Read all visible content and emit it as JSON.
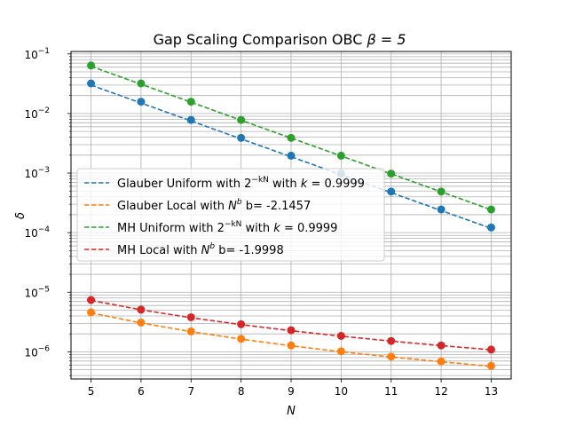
{
  "chart_data": {
    "type": "scatter",
    "title_main": "Gap Scaling Comparison OBC ",
    "title_math": "β = 5",
    "xlabel": "N",
    "ylabel": "δ",
    "x": [
      5,
      6,
      7,
      8,
      9,
      10,
      11,
      12,
      13
    ],
    "xlim": [
      4.6,
      13.4
    ],
    "ylim": [
      3.5e-07,
      0.11
    ],
    "yscale": "log",
    "grid": true,
    "legend_position": "center-left",
    "x_ticks": [
      5,
      6,
      7,
      8,
      9,
      10,
      11,
      12,
      13
    ],
    "y_ticks": [
      {
        "value": 1e-06,
        "base": "10",
        "exp": "−6"
      },
      {
        "value": 1e-05,
        "base": "10",
        "exp": "−5"
      },
      {
        "value": 0.0001,
        "base": "10",
        "exp": "−4"
      },
      {
        "value": 0.001,
        "base": "10",
        "exp": "−3"
      },
      {
        "value": 0.01,
        "base": "10",
        "exp": "−2"
      },
      {
        "value": 0.1,
        "base": "10",
        "exp": "−1"
      }
    ],
    "series": [
      {
        "name": "Glauber Uniform with 2^{-kN} with k = 0.9999",
        "color": "#1f77b4",
        "points": [
          0.032,
          0.0158,
          0.0078,
          0.0039,
          0.00196,
          0.00098,
          0.00049,
          0.000245,
          0.000122
        ],
        "fit": [
          0.03,
          0.015,
          0.0075,
          0.00375,
          0.00188,
          0.00094,
          0.00047,
          0.000235,
          0.000118
        ],
        "legend": {
          "a": "Glauber Uniform with 2",
          "sup": "−kN",
          "b": " with ",
          "c": "k",
          "d": " = 0.9999"
        }
      },
      {
        "name": "Glauber Local with N^b b= -2.1457",
        "color": "#ff7f0e",
        "points": [
          4.6e-06,
          3.1e-06,
          2.2e-06,
          1.65e-06,
          1.28e-06,
          1.02e-06,
          8.3e-07,
          6.9e-07,
          5.8e-07
        ],
        "fit": [
          4.5e-06,
          3.05e-06,
          2.18e-06,
          1.63e-06,
          1.26e-06,
          1e-06,
          8.2e-07,
          6.8e-07,
          5.7e-07
        ],
        "legend": {
          "a": "Glauber Local with ",
          "c": "N",
          "sup": "b",
          "d": " b= -2.1457"
        }
      },
      {
        "name": "MH Uniform with 2^{-kN} with k = 0.9999",
        "color": "#2ca02c",
        "points": [
          0.064,
          0.032,
          0.0158,
          0.0078,
          0.0039,
          0.00196,
          0.00098,
          0.00049,
          0.000245
        ],
        "fit": [
          0.062,
          0.031,
          0.0155,
          0.0077,
          0.00387,
          0.00194,
          0.00097,
          0.000485,
          0.000242
        ],
        "legend": {
          "a": "MH Uniform with 2",
          "sup": "−kN",
          "b": " with ",
          "c": "k",
          "d": " = 0.9999"
        }
      },
      {
        "name": "MH Local with N^b b= -1.9998",
        "color": "#d62728",
        "points": [
          7.4e-06,
          5.1e-06,
          3.8e-06,
          2.9e-06,
          2.3e-06,
          1.85e-06,
          1.52e-06,
          1.28e-06,
          1.09e-06
        ],
        "fit": [
          7.3e-06,
          5.07e-06,
          3.73e-06,
          2.86e-06,
          2.26e-06,
          1.83e-06,
          1.51e-06,
          1.27e-06,
          1.08e-06
        ],
        "legend": {
          "a": "MH Local with ",
          "c": "N",
          "sup": "b",
          "d": " b= -1.9998"
        }
      }
    ]
  }
}
